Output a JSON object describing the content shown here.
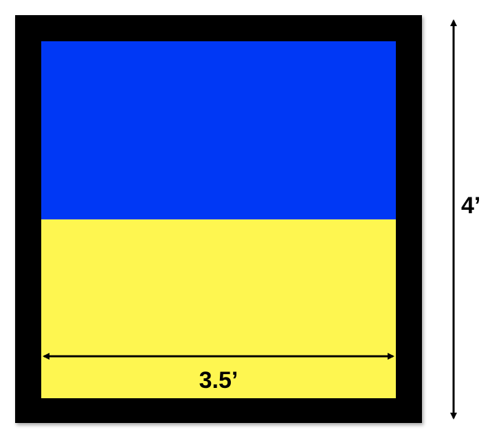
{
  "diagram": {
    "colors": {
      "frame": "#000000",
      "top_panel": "#0038f5",
      "bottom_panel": "#fef650",
      "dimension_line": "#000000"
    },
    "dimensions": {
      "width_label": "3.5’",
      "height_label": "4’"
    }
  }
}
